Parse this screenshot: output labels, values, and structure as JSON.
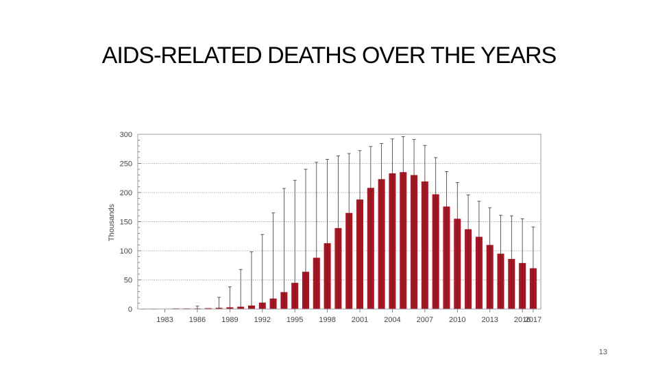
{
  "slide": {
    "title": "AIDS-RELATED DEATHS OVER THE YEARS",
    "page_number": "13"
  },
  "chart_data": {
    "type": "bar",
    "title": "AIDS-RELATED DEATHS OVER THE YEARS",
    "xlabel": "",
    "ylabel": "Thousands",
    "ylim": [
      0,
      300
    ],
    "yticks": [
      0,
      50,
      100,
      150,
      200,
      250,
      300
    ],
    "grid": "horizontal dotted",
    "legend": "none",
    "bar_color": "#b0111f",
    "categories": [
      1981,
      1982,
      1983,
      1984,
      1985,
      1986,
      1987,
      1988,
      1989,
      1990,
      1991,
      1992,
      1993,
      1994,
      1995,
      1996,
      1997,
      1998,
      1999,
      2000,
      2001,
      2002,
      2003,
      2004,
      2005,
      2006,
      2007,
      2008,
      2009,
      2010,
      2011,
      2012,
      2013,
      2014,
      2015,
      2016,
      2017
    ],
    "x_tick_labels": [
      "1983",
      "1986",
      "1989",
      "1992",
      "1995",
      "1998",
      "2001",
      "2004",
      "2007",
      "2010",
      "2013",
      "2016",
      "2017"
    ],
    "values": [
      0,
      0,
      0.5,
      1,
      1,
      1,
      1.5,
      2,
      3,
      4,
      6,
      11,
      18,
      29,
      45,
      64,
      88,
      113,
      139,
      165,
      188,
      208,
      223,
      233,
      235,
      230,
      219,
      197,
      176,
      155,
      137,
      124,
      110,
      95,
      86,
      79,
      70
    ],
    "error_low": [
      0,
      0,
      0,
      0,
      0,
      0,
      0,
      0,
      0,
      0,
      0,
      0,
      0,
      0,
      0,
      0,
      0,
      0,
      0,
      0,
      0,
      0,
      0,
      0,
      0,
      0,
      0,
      0,
      0,
      0,
      0,
      0,
      0,
      0,
      0,
      0,
      0
    ],
    "error_high": [
      0,
      0,
      0,
      0,
      0,
      5,
      0,
      20,
      38,
      68,
      98,
      128,
      165,
      207,
      221,
      240,
      252,
      257,
      263,
      267,
      272,
      279,
      284,
      292,
      296,
      291,
      281,
      260,
      236,
      217,
      196,
      185,
      174,
      161,
      160,
      155,
      141
    ]
  }
}
